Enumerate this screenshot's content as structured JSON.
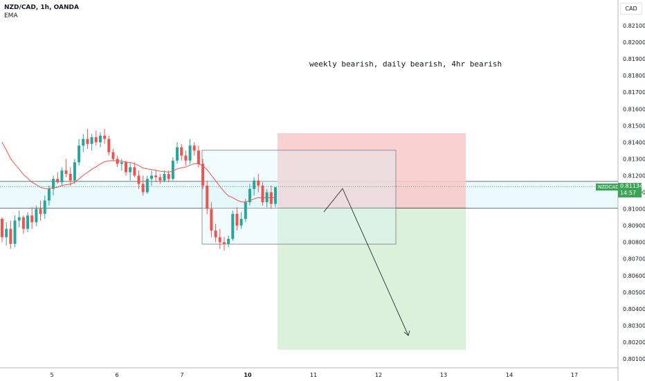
{
  "header": {
    "symbol_line": "NZD/CAD, 1h, OANDA",
    "indicator": "EMA"
  },
  "currency_button": "CAD",
  "price_label": {
    "symbol": "NZDCAD",
    "price": "0.81134",
    "countdown": "14:57"
  },
  "annotation": "weekly bearish, daily bearish, 4hr bearish",
  "colors": {
    "up": "#26a69a",
    "down": "#ef5350",
    "ema": "#ef5350",
    "zone": "#d9f4f8",
    "stop": "#f8c9c9",
    "target": "#d6efd4",
    "price": "#3aa655"
  },
  "chart_data": {
    "type": "candlestick",
    "title": "NZD/CAD, 1h, OANDA",
    "ylim": [
      0.8005,
      0.8225
    ],
    "y_ticks": [
      "0.82100",
      "0.82000",
      "0.81900",
      "0.81800",
      "0.81700",
      "0.81600",
      "0.81500",
      "0.81400",
      "0.81300",
      "0.81200",
      "0.81100",
      "0.81000",
      "0.80900",
      "0.80800",
      "0.80700",
      "0.80600",
      "0.80500",
      "0.80400",
      "0.80300",
      "0.80200",
      "0.80100"
    ],
    "x_ticks": [
      "5",
      "6",
      "7",
      "10",
      "11",
      "12",
      "13",
      "14",
      "17"
    ],
    "last_price": 0.81134,
    "zone": {
      "top": 0.81165,
      "bottom": 0.81005
    },
    "range_box": {
      "top": 0.81352,
      "bottom": 0.80789,
      "from": "7",
      "to": "12"
    },
    "position": {
      "entry": 0.81005,
      "stop": 0.81455,
      "target": 0.80155,
      "from": "10",
      "to": "13"
    },
    "projection": [
      {
        "x": "11",
        "y": 0.80982
      },
      {
        "x": "11",
        "y": 0.81122
      },
      {
        "x": "12",
        "y": 0.8024
      }
    ],
    "ohlc": [
      [
        0.8094,
        0.8095,
        0.808,
        0.8083
      ],
      [
        0.8083,
        0.8092,
        0.8078,
        0.8088
      ],
      [
        0.8088,
        0.8093,
        0.8076,
        0.8079
      ],
      [
        0.8079,
        0.8096,
        0.8077,
        0.8093
      ],
      [
        0.8093,
        0.8099,
        0.8089,
        0.8095
      ],
      [
        0.8095,
        0.8096,
        0.8085,
        0.8088
      ],
      [
        0.8088,
        0.8098,
        0.8086,
        0.8096
      ],
      [
        0.8096,
        0.8101,
        0.8088,
        0.8092
      ],
      [
        0.8092,
        0.8102,
        0.809,
        0.81
      ],
      [
        0.81,
        0.8105,
        0.8093,
        0.8097
      ],
      [
        0.8097,
        0.8108,
        0.8094,
        0.8105
      ],
      [
        0.8105,
        0.8114,
        0.8102,
        0.8112
      ],
      [
        0.8112,
        0.812,
        0.8108,
        0.8118
      ],
      [
        0.8118,
        0.8122,
        0.8115,
        0.8116
      ],
      [
        0.8116,
        0.8125,
        0.8114,
        0.8123
      ],
      [
        0.8123,
        0.813,
        0.8119,
        0.8121
      ],
      [
        0.8121,
        0.8125,
        0.8114,
        0.8117
      ],
      [
        0.8117,
        0.813,
        0.8115,
        0.8128
      ],
      [
        0.8128,
        0.8142,
        0.8126,
        0.8138
      ],
      [
        0.8138,
        0.8145,
        0.8134,
        0.8142
      ],
      [
        0.8142,
        0.8148,
        0.8136,
        0.8139
      ],
      [
        0.8139,
        0.8145,
        0.8135,
        0.8143
      ],
      [
        0.8143,
        0.8147,
        0.8138,
        0.814
      ],
      [
        0.814,
        0.8146,
        0.8137,
        0.8144
      ],
      [
        0.8144,
        0.8148,
        0.8139,
        0.8142
      ],
      [
        0.8142,
        0.8144,
        0.8132,
        0.8134
      ],
      [
        0.8134,
        0.8136,
        0.8129,
        0.813
      ],
      [
        0.813,
        0.8132,
        0.8125,
        0.8127
      ],
      [
        0.8127,
        0.813,
        0.8123,
        0.8128
      ],
      [
        0.8128,
        0.8129,
        0.812,
        0.8122
      ],
      [
        0.8122,
        0.8128,
        0.8117,
        0.8125
      ],
      [
        0.8125,
        0.8128,
        0.8119,
        0.812
      ],
      [
        0.812,
        0.8123,
        0.8112,
        0.8115
      ],
      [
        0.8115,
        0.812,
        0.8108,
        0.811
      ],
      [
        0.811,
        0.812,
        0.8109,
        0.8118
      ],
      [
        0.8118,
        0.8123,
        0.8114,
        0.812
      ],
      [
        0.812,
        0.8123,
        0.8116,
        0.8119
      ],
      [
        0.8119,
        0.8121,
        0.8115,
        0.8117
      ],
      [
        0.8117,
        0.8123,
        0.8116,
        0.8121
      ],
      [
        0.8121,
        0.8123,
        0.8116,
        0.8118
      ],
      [
        0.8118,
        0.8131,
        0.8117,
        0.8129
      ],
      [
        0.8129,
        0.814,
        0.8127,
        0.8137
      ],
      [
        0.8137,
        0.8139,
        0.8129,
        0.8132
      ],
      [
        0.8132,
        0.8135,
        0.8126,
        0.8129
      ],
      [
        0.8129,
        0.8142,
        0.8127,
        0.8138
      ],
      [
        0.8138,
        0.814,
        0.8132,
        0.8135
      ],
      [
        0.8135,
        0.8138,
        0.8125,
        0.8127
      ],
      [
        0.8127,
        0.813,
        0.8112,
        0.8114
      ],
      [
        0.8114,
        0.8117,
        0.8097,
        0.81
      ],
      [
        0.81,
        0.8104,
        0.8083,
        0.8087
      ],
      [
        0.8087,
        0.8091,
        0.808,
        0.8083
      ],
      [
        0.8083,
        0.8088,
        0.8076,
        0.808
      ],
      [
        0.808,
        0.8083,
        0.8075,
        0.8079
      ],
      [
        0.8079,
        0.8084,
        0.8077,
        0.8082
      ],
      [
        0.8082,
        0.8099,
        0.8081,
        0.8097
      ],
      [
        0.8097,
        0.8101,
        0.8087,
        0.809
      ],
      [
        0.809,
        0.8098,
        0.8088,
        0.8094
      ],
      [
        0.8094,
        0.8106,
        0.8092,
        0.8104
      ],
      [
        0.8104,
        0.8115,
        0.8102,
        0.8112
      ],
      [
        0.8112,
        0.8119,
        0.8108,
        0.8117
      ],
      [
        0.8117,
        0.8121,
        0.811,
        0.8114
      ],
      [
        0.8114,
        0.8116,
        0.8102,
        0.8104
      ],
      [
        0.8104,
        0.8112,
        0.8101,
        0.811
      ],
      [
        0.811,
        0.8114,
        0.81,
        0.8103
      ],
      [
        0.8103,
        0.8113,
        0.8101,
        0.8113
      ]
    ]
  }
}
